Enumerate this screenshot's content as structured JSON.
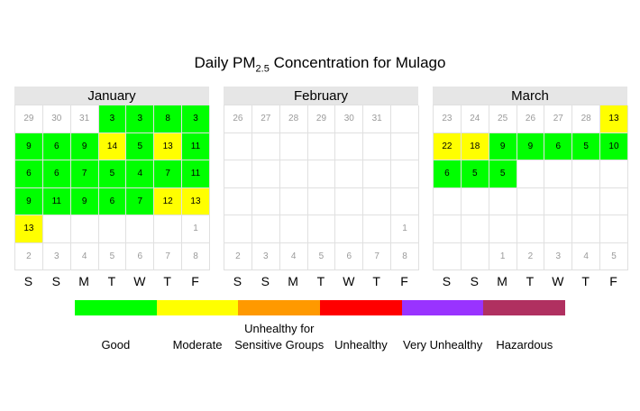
{
  "title": {
    "main": "Daily PM",
    "sub": "2.5",
    "rest": " Concentration for Mulago"
  },
  "weekday_labels": [
    "S",
    "S",
    "M",
    "T",
    "W",
    "T",
    "F"
  ],
  "colors": {
    "Good": "#00ff00",
    "Moderate": "#ffff00",
    "Unhealthy for Sensitive Groups": "#ff9900",
    "Unhealthy": "#ff0000",
    "Very Unhealthy": "#9933ff",
    "Hazardous": "#b03060"
  },
  "legend": [
    {
      "lines": [
        "Good"
      ],
      "color": "#00ff00"
    },
    {
      "lines": [
        "Moderate"
      ],
      "color": "#ffff00"
    },
    {
      "lines": [
        "Unhealthy for",
        "Sensitive Groups"
      ],
      "color": "#ff9900"
    },
    {
      "lines": [
        "Unhealthy"
      ],
      "color": "#ff0000"
    },
    {
      "lines": [
        "Very Unhealthy"
      ],
      "color": "#9933ff"
    },
    {
      "lines": [
        "Hazardous"
      ],
      "color": "#b03060"
    }
  ],
  "chart_data": {
    "type": "heatmap",
    "title": "Daily PM2.5 Concentration for Mulago",
    "months": [
      {
        "name": "January",
        "rows": [
          [
            {
              "d": "29",
              "o": true
            },
            {
              "d": "30",
              "o": true
            },
            {
              "d": "31",
              "o": true
            },
            {
              "v": "3",
              "c": "Good"
            },
            {
              "v": "3",
              "c": "Good"
            },
            {
              "v": "8",
              "c": "Good"
            },
            {
              "v": "3",
              "c": "Good"
            }
          ],
          [
            {
              "v": "9",
              "c": "Good"
            },
            {
              "v": "6",
              "c": "Good"
            },
            {
              "v": "9",
              "c": "Good"
            },
            {
              "v": "14",
              "c": "Moderate"
            },
            {
              "v": "5",
              "c": "Good"
            },
            {
              "v": "13",
              "c": "Moderate"
            },
            {
              "v": "11",
              "c": "Good"
            }
          ],
          [
            {
              "v": "6",
              "c": "Good"
            },
            {
              "v": "6",
              "c": "Good"
            },
            {
              "v": "7",
              "c": "Good"
            },
            {
              "v": "5",
              "c": "Good"
            },
            {
              "v": "4",
              "c": "Good"
            },
            {
              "v": "7",
              "c": "Good"
            },
            {
              "v": "11",
              "c": "Good"
            }
          ],
          [
            {
              "v": "9",
              "c": "Good"
            },
            {
              "v": "11",
              "c": "Good"
            },
            {
              "v": "9",
              "c": "Good"
            },
            {
              "v": "6",
              "c": "Good"
            },
            {
              "v": "7",
              "c": "Good"
            },
            {
              "v": "12",
              "c": "Moderate"
            },
            {
              "v": "13",
              "c": "Moderate"
            }
          ],
          [
            {
              "v": "13",
              "c": "Moderate"
            },
            {},
            {},
            {},
            {},
            {},
            {
              "d": "1",
              "o": true
            }
          ],
          [
            {
              "d": "2",
              "o": true
            },
            {
              "d": "3",
              "o": true
            },
            {
              "d": "4",
              "o": true
            },
            {
              "d": "5",
              "o": true
            },
            {
              "d": "6",
              "o": true
            },
            {
              "d": "7",
              "o": true
            },
            {
              "d": "8",
              "o": true
            }
          ]
        ]
      },
      {
        "name": "February",
        "rows": [
          [
            {
              "d": "26",
              "o": true
            },
            {
              "d": "27",
              "o": true
            },
            {
              "d": "28",
              "o": true
            },
            {
              "d": "29",
              "o": true
            },
            {
              "d": "30",
              "o": true
            },
            {
              "d": "31",
              "o": true
            },
            {}
          ],
          [
            {},
            {},
            {},
            {},
            {},
            {},
            {}
          ],
          [
            {},
            {},
            {},
            {},
            {},
            {},
            {}
          ],
          [
            {},
            {},
            {},
            {},
            {},
            {},
            {}
          ],
          [
            {},
            {},
            {},
            {},
            {},
            {},
            {
              "d": "1",
              "o": true
            }
          ],
          [
            {
              "d": "2",
              "o": true
            },
            {
              "d": "3",
              "o": true
            },
            {
              "d": "4",
              "o": true
            },
            {
              "d": "5",
              "o": true
            },
            {
              "d": "6",
              "o": true
            },
            {
              "d": "7",
              "o": true
            },
            {
              "d": "8",
              "o": true
            }
          ]
        ]
      },
      {
        "name": "March",
        "rows": [
          [
            {
              "d": "23",
              "o": true
            },
            {
              "d": "24",
              "o": true
            },
            {
              "d": "25",
              "o": true
            },
            {
              "d": "26",
              "o": true
            },
            {
              "d": "27",
              "o": true
            },
            {
              "d": "28",
              "o": true
            },
            {
              "v": "13",
              "c": "Moderate"
            }
          ],
          [
            {
              "v": "22",
              "c": "Moderate"
            },
            {
              "v": "18",
              "c": "Moderate"
            },
            {
              "v": "9",
              "c": "Good"
            },
            {
              "v": "9",
              "c": "Good"
            },
            {
              "v": "6",
              "c": "Good"
            },
            {
              "v": "5",
              "c": "Good"
            },
            {
              "v": "10",
              "c": "Good"
            }
          ],
          [
            {
              "v": "6",
              "c": "Good"
            },
            {
              "v": "5",
              "c": "Good"
            },
            {
              "v": "5",
              "c": "Good"
            },
            {},
            {},
            {},
            {}
          ],
          [
            {},
            {},
            {},
            {},
            {},
            {},
            {}
          ],
          [
            {},
            {},
            {},
            {},
            {},
            {},
            {}
          ],
          [
            {},
            {},
            {
              "d": "1",
              "o": true
            },
            {
              "d": "2",
              "o": true
            },
            {
              "d": "3",
              "o": true
            },
            {
              "d": "4",
              "o": true
            },
            {
              "d": "5",
              "o": true
            }
          ]
        ]
      }
    ]
  }
}
